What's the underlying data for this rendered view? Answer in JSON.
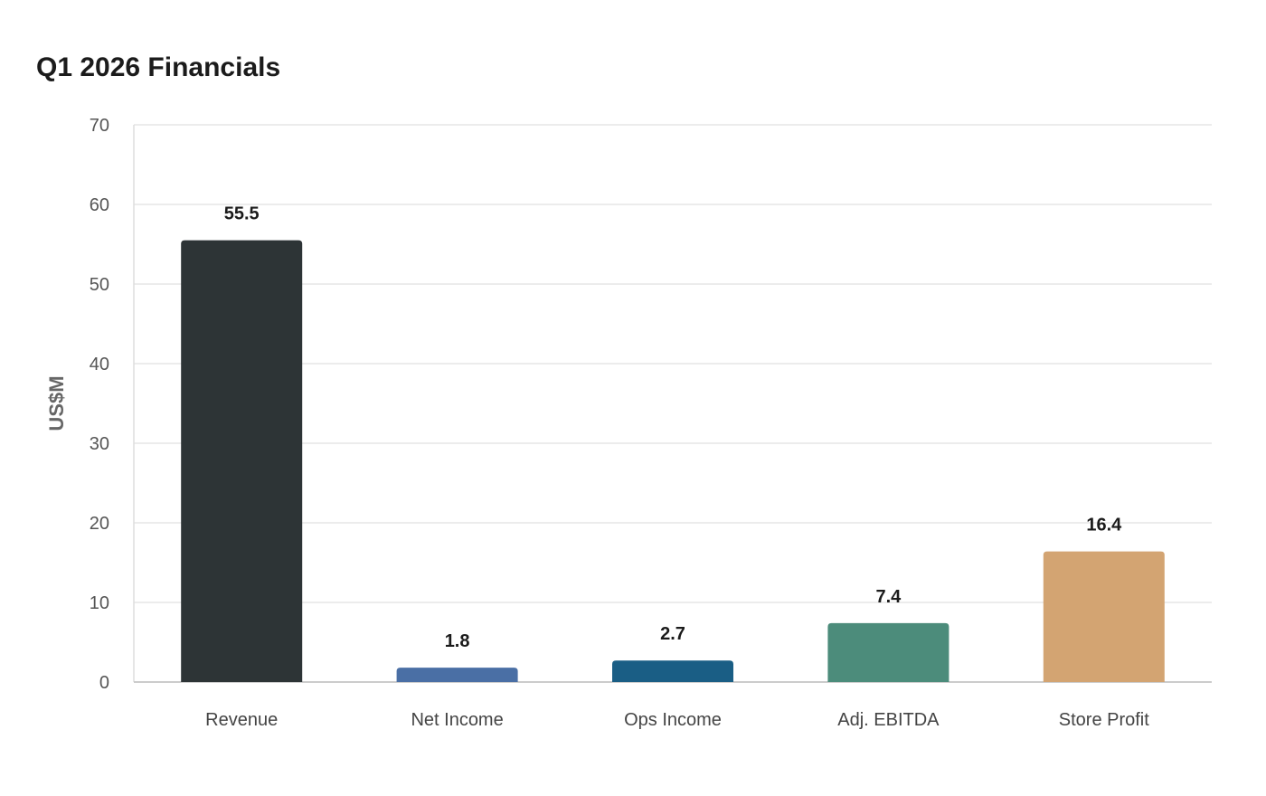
{
  "chart_data": {
    "type": "bar",
    "title": "Q1 2026 Financials",
    "xlabel": "",
    "ylabel": "US$M",
    "categories": [
      "Revenue",
      "Net Income",
      "Ops Income",
      "Adj. EBITDA",
      "Store Profit"
    ],
    "values": [
      55.5,
      1.8,
      2.7,
      7.4,
      16.4
    ],
    "value_labels": [
      "55.5",
      "1.8",
      "2.7",
      "7.4",
      "16.4"
    ],
    "colors": [
      "#2d3436",
      "#4a6fa5",
      "#1a5e85",
      "#4c8c7b",
      "#d3a472"
    ],
    "ylim": [
      0,
      70
    ],
    "yticks": [
      0,
      10,
      20,
      30,
      40,
      50,
      60,
      70
    ],
    "ytick_labels": [
      "0",
      "10",
      "20",
      "30",
      "40",
      "50",
      "60",
      "70"
    ],
    "grid": true,
    "legend": "none"
  }
}
